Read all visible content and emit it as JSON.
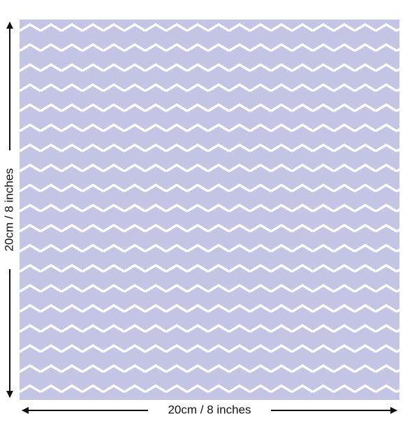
{
  "swatch": {
    "height_label": "20cm / 8 inches",
    "width_label": "20cm / 8 inches"
  }
}
